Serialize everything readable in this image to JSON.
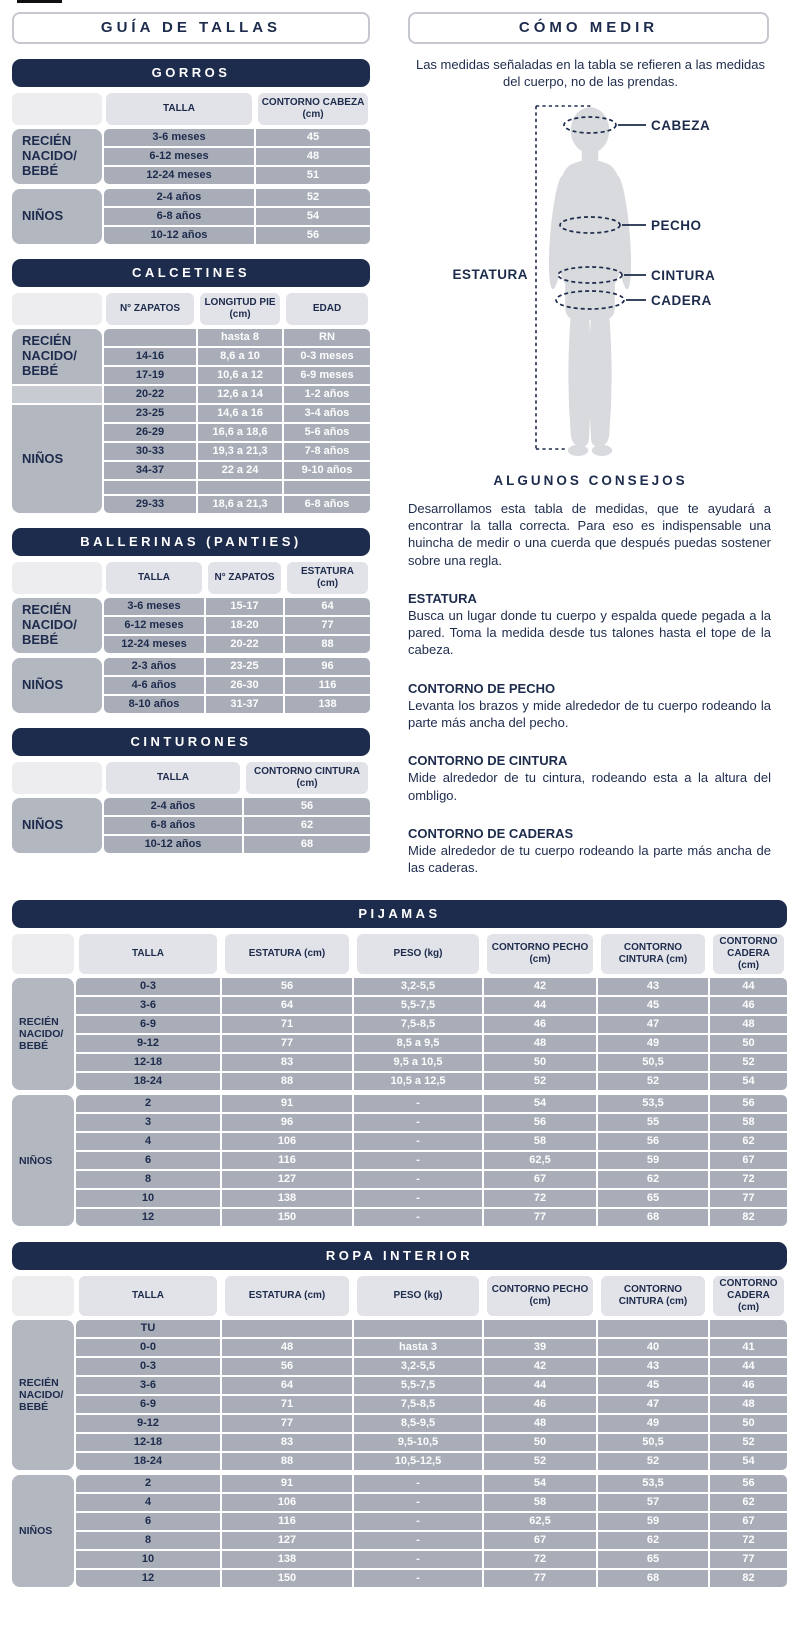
{
  "left_title": "GUÍA DE TALLAS",
  "colors": {
    "navy": "#1d2b4c",
    "cell_gray": "#a8adb7",
    "category_gray": "#b3b7c0",
    "category_light_gray": "#c8cbd2",
    "header_pill_gray": "#e2e3e8",
    "corner_pill_gray": "#ededf0",
    "silhouette_gray": "#d9dadd",
    "value_text": "#ffffff"
  },
  "tables": {
    "gorros": {
      "title": "GORROS",
      "headers": [
        "TALLA",
        "CONTORNO CABEZA (cm)"
      ],
      "groups": [
        {
          "label": "RECIÉN NACIDO/ BEBÉ",
          "rows": [
            [
              "3-6 meses",
              "45"
            ],
            [
              "6-12 meses",
              "48"
            ],
            [
              "12-24 meses",
              "51"
            ]
          ]
        },
        {
          "label": "NIÑOS",
          "rows": [
            [
              "2-4 años",
              "52"
            ],
            [
              "6-8 años",
              "54"
            ],
            [
              "10-12 años",
              "56"
            ]
          ]
        }
      ]
    },
    "calcetines": {
      "title": "CALCETINES",
      "headers": [
        "N° ZAPATOS",
        "LONGITUD PIE (cm)",
        "EDAD"
      ],
      "groups": [
        {
          "label": "RECIÉN NACIDO/ BEBÉ",
          "rows": [
            [
              "",
              "hasta 8",
              "RN"
            ],
            [
              "14-16",
              "8,6 a 10",
              "0-3 meses"
            ],
            [
              "17-19",
              "10,6 a 12",
              "6-9 meses"
            ]
          ]
        },
        {
          "label": "",
          "rows": [
            [
              "20-22",
              "12,6 a 14",
              "1-2 años"
            ]
          ]
        },
        {
          "label": "NIÑOS",
          "rows": [
            [
              "23-25",
              "14,6 a 16",
              "3-4 años"
            ],
            [
              "26-29",
              "16,6 a 18,6",
              "5-6 años"
            ],
            [
              "30-33",
              "19,3 a 21,3",
              "7-8 años"
            ],
            [
              "34-37",
              "22 a 24",
              "9-10 años"
            ],
            [
              "",
              "",
              ""
            ],
            [
              "29-33",
              "18,6 a 21,3",
              "6-8 años"
            ]
          ]
        }
      ]
    },
    "ballerinas": {
      "title": "BALLERINAS (PANTIES)",
      "headers": [
        "TALLA",
        "N° ZAPATOS",
        "ESTATURA (cm)"
      ],
      "groups": [
        {
          "label": "RECIÉN NACIDO/ BEBÉ",
          "rows": [
            [
              "3-6 meses",
              "15-17",
              "64"
            ],
            [
              "6-12 meses",
              "18-20",
              "77"
            ],
            [
              "12-24 meses",
              "20-22",
              "88"
            ]
          ]
        },
        {
          "label": "NIÑOS",
          "rows": [
            [
              "2-3 años",
              "23-25",
              "96"
            ],
            [
              "4-6 años",
              "26-30",
              "116"
            ],
            [
              "8-10 años",
              "31-37",
              "138"
            ]
          ]
        }
      ]
    },
    "cinturones": {
      "title": "CINTURONES",
      "headers": [
        "TALLA",
        "CONTORNO CINTURA (cm)"
      ],
      "groups": [
        {
          "label": "NIÑOS",
          "rows": [
            [
              "2-4 años",
              "56"
            ],
            [
              "6-8 años",
              "62"
            ],
            [
              "10-12 años",
              "68"
            ]
          ]
        }
      ]
    },
    "pijamas": {
      "title": "PIJAMAS",
      "headers": [
        "TALLA",
        "ESTATURA (cm)",
        "PESO (kg)",
        "CONTORNO PECHO (cm)",
        "CONTORNO CINTURA (cm)",
        "CONTORNO CADERA (cm)"
      ],
      "groups": [
        {
          "label": "RECIÉN NACIDO/ BEBÉ",
          "rows": [
            [
              "0-3",
              "56",
              "3,2-5,5",
              "42",
              "43",
              "44"
            ],
            [
              "3-6",
              "64",
              "5,5-7,5",
              "44",
              "45",
              "46"
            ],
            [
              "6-9",
              "71",
              "7,5-8,5",
              "46",
              "47",
              "48"
            ],
            [
              "9-12",
              "77",
              "8,5 a 9,5",
              "48",
              "49",
              "50"
            ],
            [
              "12-18",
              "83",
              "9,5 a 10,5",
              "50",
              "50,5",
              "52"
            ],
            [
              "18-24",
              "88",
              "10,5 a 12,5",
              "52",
              "52",
              "54"
            ]
          ]
        },
        {
          "label": "NIÑOS",
          "rows": [
            [
              "2",
              "91",
              "-",
              "54",
              "53,5",
              "56"
            ],
            [
              "3",
              "96",
              "-",
              "56",
              "55",
              "58"
            ],
            [
              "4",
              "106",
              "-",
              "58",
              "56",
              "62"
            ],
            [
              "6",
              "116",
              "-",
              "62,5",
              "59",
              "67"
            ],
            [
              "8",
              "127",
              "-",
              "67",
              "62",
              "72"
            ],
            [
              "10",
              "138",
              "-",
              "72",
              "65",
              "77"
            ],
            [
              "12",
              "150",
              "-",
              "77",
              "68",
              "82"
            ]
          ]
        }
      ]
    },
    "ropa_interior": {
      "title": "ROPA INTERIOR",
      "headers": [
        "TALLA",
        "ESTATURA (cm)",
        "PESO (kg)",
        "CONTORNO PECHO (cm)",
        "CONTORNO CINTURA (cm)",
        "CONTORNO CADERA (cm)"
      ],
      "groups": [
        {
          "label": "RECIÉN NACIDO/ BEBÉ",
          "rows": [
            [
              "TU",
              "",
              "",
              "",
              "",
              ""
            ],
            [
              "0-0",
              "48",
              "hasta 3",
              "39",
              "40",
              "41"
            ],
            [
              "0-3",
              "56",
              "3,2-5,5",
              "42",
              "43",
              "44"
            ],
            [
              "3-6",
              "64",
              "5,5-7,5",
              "44",
              "45",
              "46"
            ],
            [
              "6-9",
              "71",
              "7,5-8,5",
              "46",
              "47",
              "48"
            ],
            [
              "9-12",
              "77",
              "8,5-9,5",
              "48",
              "49",
              "50"
            ],
            [
              "12-18",
              "83",
              "9,5-10,5",
              "50",
              "50,5",
              "52"
            ],
            [
              "18-24",
              "88",
              "10,5-12,5",
              "52",
              "52",
              "54"
            ]
          ]
        },
        {
          "label": "NIÑOS",
          "rows": [
            [
              "2",
              "91",
              "-",
              "54",
              "53,5",
              "56"
            ],
            [
              "4",
              "106",
              "-",
              "58",
              "57",
              "62"
            ],
            [
              "6",
              "116",
              "-",
              "62,5",
              "59",
              "67"
            ],
            [
              "8",
              "127",
              "-",
              "67",
              "62",
              "72"
            ],
            [
              "10",
              "138",
              "-",
              "72",
              "65",
              "77"
            ],
            [
              "12",
              "150",
              "-",
              "77",
              "68",
              "82"
            ]
          ]
        }
      ]
    }
  },
  "como_medir": {
    "title": "CÓMO MEDIR",
    "intro": "Las medidas señaladas en la tabla se refieren a las medidas del cuerpo, no de las prendas.",
    "diagram_labels": {
      "cabeza": "CABEZA",
      "pecho": "PECHO",
      "cintura": "CINTURA",
      "cadera": "CADERA",
      "estatura": "ESTATURA"
    },
    "consejos_title": "ALGUNOS CONSEJOS",
    "consejos_text": "Desarrollamos esta tabla de medidas, que te ayudará a encontrar la talla correcta. Para eso es indispensable una huincha de medir o una cuerda que después puedas sostener sobre una regla.",
    "sections": [
      {
        "heading": "ESTATURA",
        "text": "Busca un lugar donde tu cuerpo y espalda quede pegada a la pared. Toma la medida desde tus talones hasta el tope de la cabeza."
      },
      {
        "heading": "CONTORNO DE PECHO",
        "text": "Levanta los brazos y mide alrededor de tu cuerpo rodeando la parte más ancha del pecho."
      },
      {
        "heading": "CONTORNO DE CINTURA",
        "text": "Mide alrededor de tu cintura, rodeando esta a la altura del ombligo."
      },
      {
        "heading": "CONTORNO DE CADERAS",
        "text": "Mide alrededor de tu cuerpo rodeando la parte más ancha de las caderas."
      }
    ]
  }
}
